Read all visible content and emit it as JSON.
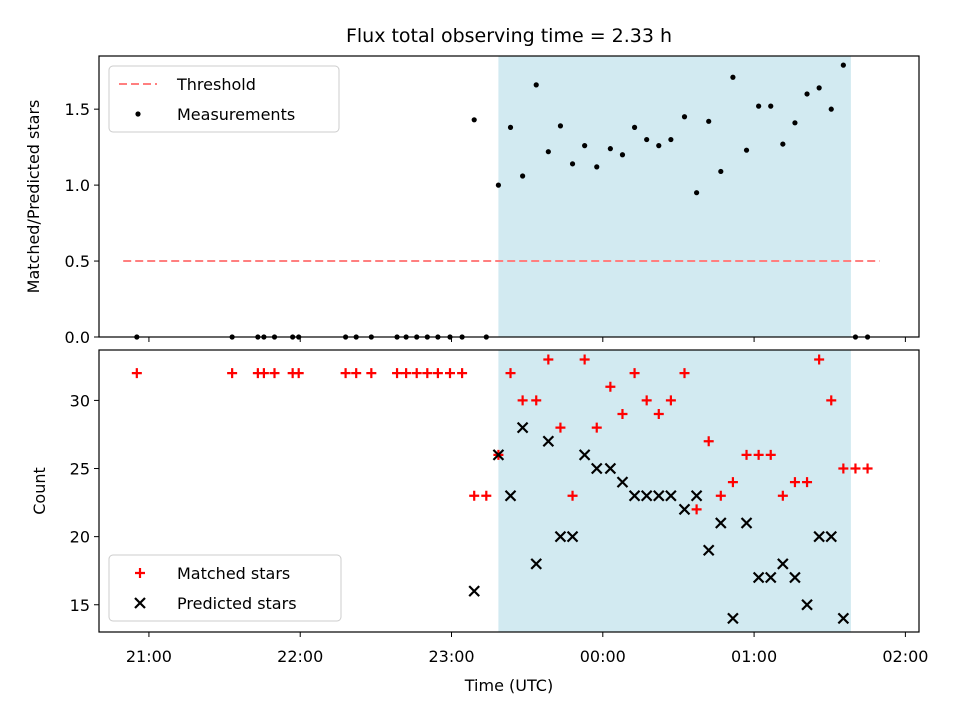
{
  "chart_data": {
    "type": "scatter",
    "title": "Flux total observing time = 2.33 h",
    "xlabel": "Time (UTC)",
    "x_tick_labels": [
      "21:00",
      "22:00",
      "23:00",
      "00:00",
      "01:00",
      "02:00"
    ],
    "x_tick_hours": [
      21,
      22,
      23,
      24,
      25,
      26
    ],
    "xlim_hours": [
      20.67,
      26.09
    ],
    "observing_window_hours": [
      23.31,
      25.64
    ],
    "colors": {
      "threshold": "#ff7f7f",
      "matched": "#ff0000",
      "predicted": "#000000",
      "window": "#add8e6",
      "measurements": "#000000"
    },
    "panels": [
      {
        "name": "ratio",
        "ylabel": "Matched/Predicted stars",
        "ylim": [
          0,
          1.85
        ],
        "y_ticks": [
          0.0,
          0.5,
          1.0,
          1.5
        ],
        "y_tick_labels": [
          "0.0",
          "0.5",
          "1.0",
          "1.5"
        ],
        "legend_position": "upper left",
        "threshold": {
          "name": "Threshold",
          "value": 0.5,
          "x_range_hours": [
            20.83,
            25.83
          ]
        },
        "series": [
          {
            "name": "Measurements",
            "points": [
              [
                20.92,
                0
              ],
              [
                21.55,
                0
              ],
              [
                21.72,
                0
              ],
              [
                21.76,
                0
              ],
              [
                21.83,
                0
              ],
              [
                21.95,
                0
              ],
              [
                21.99,
                0
              ],
              [
                22.3,
                0
              ],
              [
                22.37,
                0
              ],
              [
                22.47,
                0
              ],
              [
                22.64,
                0
              ],
              [
                22.7,
                0
              ],
              [
                22.77,
                0
              ],
              [
                22.84,
                0
              ],
              [
                22.91,
                0
              ],
              [
                22.99,
                0
              ],
              [
                23.07,
                0
              ],
              [
                23.15,
                1.43
              ],
              [
                23.23,
                0
              ],
              [
                23.31,
                1.0
              ],
              [
                23.39,
                1.38
              ],
              [
                23.47,
                1.06
              ],
              [
                23.56,
                1.66
              ],
              [
                23.64,
                1.22
              ],
              [
                23.72,
                1.39
              ],
              [
                23.8,
                1.14
              ],
              [
                23.88,
                1.26
              ],
              [
                23.96,
                1.12
              ],
              [
                24.05,
                1.24
              ],
              [
                24.13,
                1.2
              ],
              [
                24.21,
                1.38
              ],
              [
                24.29,
                1.3
              ],
              [
                24.37,
                1.26
              ],
              [
                24.45,
                1.3
              ],
              [
                24.54,
                1.45
              ],
              [
                24.62,
                0.95
              ],
              [
                24.7,
                1.42
              ],
              [
                24.78,
                1.09
              ],
              [
                24.86,
                1.71
              ],
              [
                24.95,
                1.23
              ],
              [
                25.03,
                1.52
              ],
              [
                25.11,
                1.52
              ],
              [
                25.19,
                1.27
              ],
              [
                25.27,
                1.41
              ],
              [
                25.35,
                1.6
              ],
              [
                25.43,
                1.64
              ],
              [
                25.51,
                1.5
              ],
              [
                25.59,
                1.79
              ],
              [
                25.67,
                0
              ],
              [
                25.75,
                0
              ]
            ]
          }
        ]
      },
      {
        "name": "counts",
        "ylabel": "Count",
        "ylim": [
          13.0,
          33.7
        ],
        "y_ticks": [
          15,
          20,
          25,
          30
        ],
        "y_tick_labels": [
          "15",
          "20",
          "25",
          "30"
        ],
        "legend_position": "lower left",
        "series": [
          {
            "name": "Matched stars",
            "marker": "plus",
            "points": [
              [
                20.92,
                32
              ],
              [
                21.55,
                32
              ],
              [
                21.72,
                32
              ],
              [
                21.76,
                32
              ],
              [
                21.83,
                32
              ],
              [
                21.95,
                32
              ],
              [
                21.99,
                32
              ],
              [
                22.3,
                32
              ],
              [
                22.37,
                32
              ],
              [
                22.47,
                32
              ],
              [
                22.64,
                32
              ],
              [
                22.7,
                32
              ],
              [
                22.77,
                32
              ],
              [
                22.84,
                32
              ],
              [
                22.91,
                32
              ],
              [
                22.99,
                32
              ],
              [
                23.07,
                32
              ],
              [
                23.15,
                23
              ],
              [
                23.23,
                23
              ],
              [
                23.31,
                26
              ],
              [
                23.39,
                32
              ],
              [
                23.47,
                30
              ],
              [
                23.56,
                30
              ],
              [
                23.64,
                33
              ],
              [
                23.72,
                28
              ],
              [
                23.8,
                23
              ],
              [
                23.88,
                33
              ],
              [
                23.96,
                28
              ],
              [
                24.05,
                31
              ],
              [
                24.13,
                29
              ],
              [
                24.21,
                32
              ],
              [
                24.29,
                30
              ],
              [
                24.37,
                29
              ],
              [
                24.45,
                30
              ],
              [
                24.54,
                32
              ],
              [
                24.62,
                22
              ],
              [
                24.7,
                27
              ],
              [
                24.78,
                23
              ],
              [
                24.86,
                24
              ],
              [
                24.95,
                26
              ],
              [
                25.03,
                26
              ],
              [
                25.11,
                26
              ],
              [
                25.19,
                23
              ],
              [
                25.27,
                24
              ],
              [
                25.35,
                24
              ],
              [
                25.43,
                33
              ],
              [
                25.51,
                30
              ],
              [
                25.59,
                25
              ],
              [
                25.67,
                25
              ],
              [
                25.75,
                25
              ]
            ]
          },
          {
            "name": "Predicted stars",
            "marker": "x",
            "points": [
              [
                23.15,
                16
              ],
              [
                23.31,
                26
              ],
              [
                23.39,
                23
              ],
              [
                23.47,
                28
              ],
              [
                23.56,
                18
              ],
              [
                23.64,
                27
              ],
              [
                23.72,
                20
              ],
              [
                23.8,
                20
              ],
              [
                23.88,
                26
              ],
              [
                23.96,
                25
              ],
              [
                24.05,
                25
              ],
              [
                24.13,
                24
              ],
              [
                24.21,
                23
              ],
              [
                24.29,
                23
              ],
              [
                24.37,
                23
              ],
              [
                24.45,
                23
              ],
              [
                24.54,
                22
              ],
              [
                24.62,
                23
              ],
              [
                24.7,
                19
              ],
              [
                24.78,
                21
              ],
              [
                24.86,
                14
              ],
              [
                24.95,
                21
              ],
              [
                25.03,
                17
              ],
              [
                25.11,
                17
              ],
              [
                25.19,
                18
              ],
              [
                25.27,
                17
              ],
              [
                25.35,
                15
              ],
              [
                25.43,
                20
              ],
              [
                25.51,
                20
              ],
              [
                25.59,
                14
              ]
            ]
          }
        ]
      }
    ]
  }
}
